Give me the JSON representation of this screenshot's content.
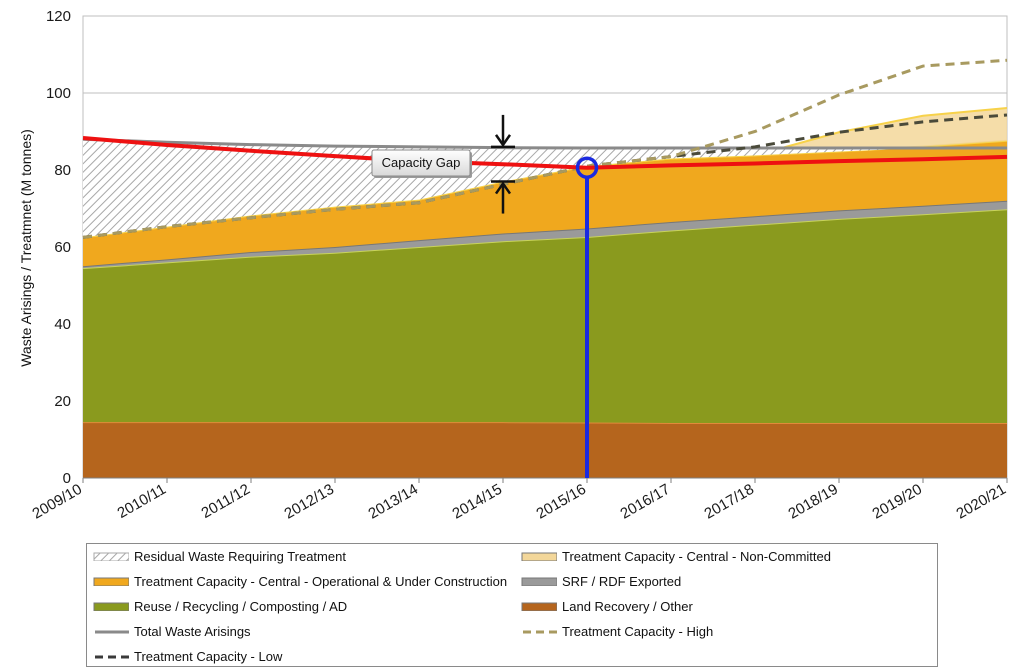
{
  "chart_data": {
    "type": "area",
    "categories": [
      "2009/10",
      "2010/11",
      "2011/12",
      "2012/13",
      "2013/14",
      "2014/15",
      "2015/16",
      "2016/17",
      "2017/18",
      "2018/19",
      "2019/20",
      "2020/21"
    ],
    "ylabel": "Waste Arisings / Treatmnet (M tonnes)",
    "ylim": [
      0,
      120
    ],
    "yticks": [
      0,
      20,
      40,
      60,
      80,
      100,
      120
    ],
    "grid": true,
    "legend_position": "bottom",
    "stacked_series": [
      {
        "name": "Land Recovery / Other",
        "color": "#b5651d",
        "values": [
          14.5,
          14.5,
          14.5,
          14.5,
          14.5,
          14.5,
          14.4,
          14.3,
          14.3,
          14.3,
          14.3,
          14.3
        ]
      },
      {
        "name": "Reuse / Recycling / Composting / AD",
        "color": "#8a9a1e",
        "values": [
          40,
          41.5,
          43,
          44,
          45.5,
          47,
          48.2,
          50,
          51.5,
          53,
          54.2,
          55.5
        ]
      },
      {
        "name": "SRF / RDF Exported",
        "color": "#9a9a9a",
        "values": [
          0.5,
          0.8,
          1.2,
          1.5,
          1.8,
          2.0,
          2.2,
          2.2,
          2.2,
          2.2,
          2.2,
          2.2
        ]
      },
      {
        "name": "Treatment Capacity - Central - Operational & Under Construction",
        "color": "#f0a81e",
        "values": [
          7.5,
          8.5,
          9.5,
          10.5,
          10.5,
          13.5,
          16.2,
          16.5,
          15.8,
          15.3,
          15.4,
          15.6
        ]
      },
      {
        "name": "Treatment Capacity - Central - Non-Committed",
        "color": "#f3d79a",
        "values": [
          0,
          0,
          0,
          0,
          0,
          0,
          0,
          0,
          0,
          5,
          8,
          8.5
        ]
      }
    ],
    "residual_series": {
      "name": "Residual Waste Requiring Treatment",
      "color": "#bbbbbb",
      "top_values": [
        88,
        87.2,
        86.6,
        86.2,
        86,
        85.8,
        85.7,
        85.7,
        85.7,
        85.7,
        85.7,
        85.7
      ]
    },
    "line_series": [
      {
        "name": "Total Waste Arisings",
        "color": "#8a8a8a",
        "dash": "solid",
        "values": [
          88,
          87.2,
          86.6,
          86.2,
          86,
          85.8,
          85.7,
          85.7,
          85.7,
          85.7,
          85.7,
          85.7
        ]
      },
      {
        "name": "Treatment Capacity - Low",
        "color": "#4a4a3a",
        "dash": "dashed",
        "values": [
          62.5,
          65.3,
          67.6,
          69.8,
          71.5,
          76.3,
          81,
          83.5,
          86,
          89.8,
          92.5,
          94.3
        ]
      },
      {
        "name": "Treatment Capacity - High",
        "color": "#a89a60",
        "dash": "dashed",
        "values": [
          62.5,
          65.3,
          67.6,
          69.8,
          71.5,
          76.3,
          81,
          83.5,
          90,
          99.5,
          107,
          108.5
        ]
      },
      {
        "name": "",
        "color": "#ee1111",
        "dash": "solid",
        "values": [
          88.3,
          86.5,
          85,
          83.6,
          82.3,
          81.5,
          80.6,
          81.2,
          81.7,
          82.3,
          82.8,
          83.4
        ]
      }
    ],
    "annotation": {
      "text": "Capacity Gap",
      "marker_category": "2015/16",
      "marker_value": 80.6,
      "marker_color": "#1a2ae0",
      "gap_arrows_category": "2014/15",
      "gap_top": 86,
      "gap_bottom": 77
    }
  },
  "legend": [
    {
      "label": "Residual Waste Requiring Treatment",
      "kind": "hatch",
      "color": "#bbbbbb"
    },
    {
      "label": "Treatment Capacity - Central - Non-Committed",
      "kind": "fill",
      "color": "#f3d79a"
    },
    {
      "label": "Treatment Capacity - Central - Operational & Under Construction",
      "kind": "fill",
      "color": "#f0a81e"
    },
    {
      "label": "SRF / RDF Exported",
      "kind": "fill",
      "color": "#9a9a9a"
    },
    {
      "label": "Reuse / Recycling / Composting / AD",
      "kind": "fill",
      "color": "#8a9a1e"
    },
    {
      "label": "Land Recovery / Other",
      "kind": "fill",
      "color": "#b5651d"
    },
    {
      "label": "Total Waste Arisings",
      "kind": "line",
      "color": "#8a8a8a"
    },
    {
      "label": "Treatment Capacity - High",
      "kind": "dash",
      "color": "#a89a60"
    },
    {
      "label": "Treatment Capacity - Low",
      "kind": "dash",
      "color": "#3a3a3a"
    }
  ]
}
